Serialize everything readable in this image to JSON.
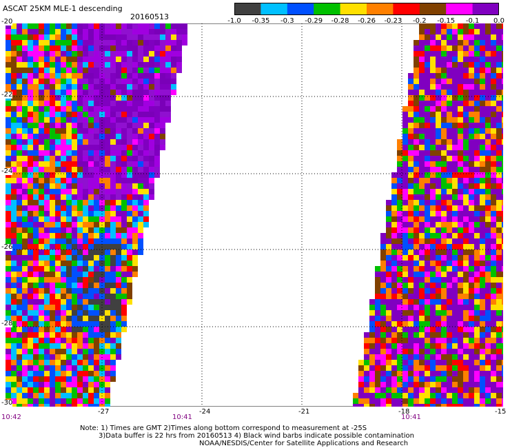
{
  "header": {
    "title": "ASCAT 25KM MLE-1 descending",
    "date": "20160513"
  },
  "colorbar": {
    "colors": [
      "#404040",
      "#00c0ff",
      "#0050ff",
      "#00c000",
      "#ffe000",
      "#ff8000",
      "#ff0000",
      "#804000",
      "#ff00ff",
      "#8000c0"
    ],
    "tick_labels": [
      "-1.0",
      "-0.35",
      "-0.3",
      "-0.29",
      "-0.28",
      "-0.26",
      "-0.23",
      "-0.2",
      "-0.15",
      "-0.1",
      "0.0"
    ]
  },
  "map": {
    "lat_labels": [
      "-20",
      "-22",
      "-24",
      "-26",
      "-28",
      "-30"
    ],
    "lon_labels": [
      "-27",
      "-24",
      "-21",
      "-18",
      "-15"
    ],
    "lat_range": [
      -30,
      -20
    ],
    "lon_range": [
      -30,
      -15
    ],
    "pass_times": [
      {
        "label": "10:42"
      },
      {
        "label": "10:41"
      },
      {
        "label": "10:41"
      }
    ],
    "grid": "dotted"
  },
  "notes": {
    "line1": "Note: 1) Times are GMT 2)Times along bottom correspond to measurement at -25S",
    "line2": "3)Data buffer is 22 hrs from 20160513 4) Black wind barbs indicate possible contamination",
    "line3": "NOAA/NESDIS/Center for Satellite Applications and Research"
  }
}
